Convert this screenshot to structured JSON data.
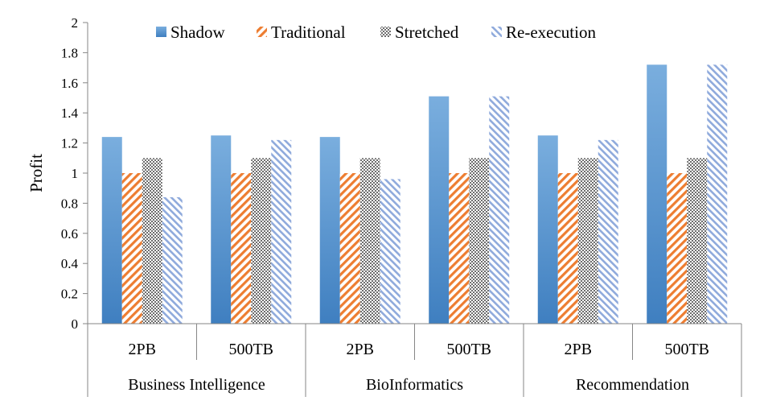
{
  "chart_data": {
    "type": "bar",
    "title": "",
    "ylabel": "Profit",
    "xlabel": "",
    "ylim": [
      0,
      2
    ],
    "yticks": [
      0,
      0.2,
      0.4,
      0.6,
      0.8,
      1,
      1.2,
      1.4,
      1.6,
      1.8,
      2
    ],
    "ytick_labels": [
      "0",
      "0.2",
      "0.4",
      "0.6",
      "0.8",
      "1",
      "1.2",
      "1.4",
      "1.6",
      "1.8",
      "2"
    ],
    "grid": false,
    "legend_position": "top",
    "groups": [
      {
        "label": "Business Intelligence",
        "categories": [
          "2PB",
          "500TB"
        ]
      },
      {
        "label": "BioInformatics",
        "categories": [
          "2PB",
          "500TB"
        ]
      },
      {
        "label": "Recommendation",
        "categories": [
          "2PB",
          "500TB"
        ]
      }
    ],
    "categories": [
      "2PB",
      "500TB",
      "2PB",
      "500TB",
      "2PB",
      "500TB"
    ],
    "series": [
      {
        "name": "Shadow",
        "pattern": "gradient",
        "color": "#5b9bd5",
        "values": [
          1.24,
          1.25,
          1.24,
          1.51,
          1.25,
          1.72
        ]
      },
      {
        "name": "Traditional",
        "pattern": "diagonal-lines",
        "color": "#ed7d31",
        "values": [
          1.0,
          1.0,
          1.0,
          1.0,
          1.0,
          1.0
        ]
      },
      {
        "name": "Stretched",
        "pattern": "checker",
        "color": "#7f7f7f",
        "values": [
          1.1,
          1.1,
          1.1,
          1.1,
          1.1,
          1.1
        ]
      },
      {
        "name": "Re-execution",
        "pattern": "light-diagonal",
        "color": "#8faadc",
        "values": [
          0.84,
          1.22,
          0.96,
          1.51,
          1.22,
          1.72
        ]
      }
    ]
  }
}
